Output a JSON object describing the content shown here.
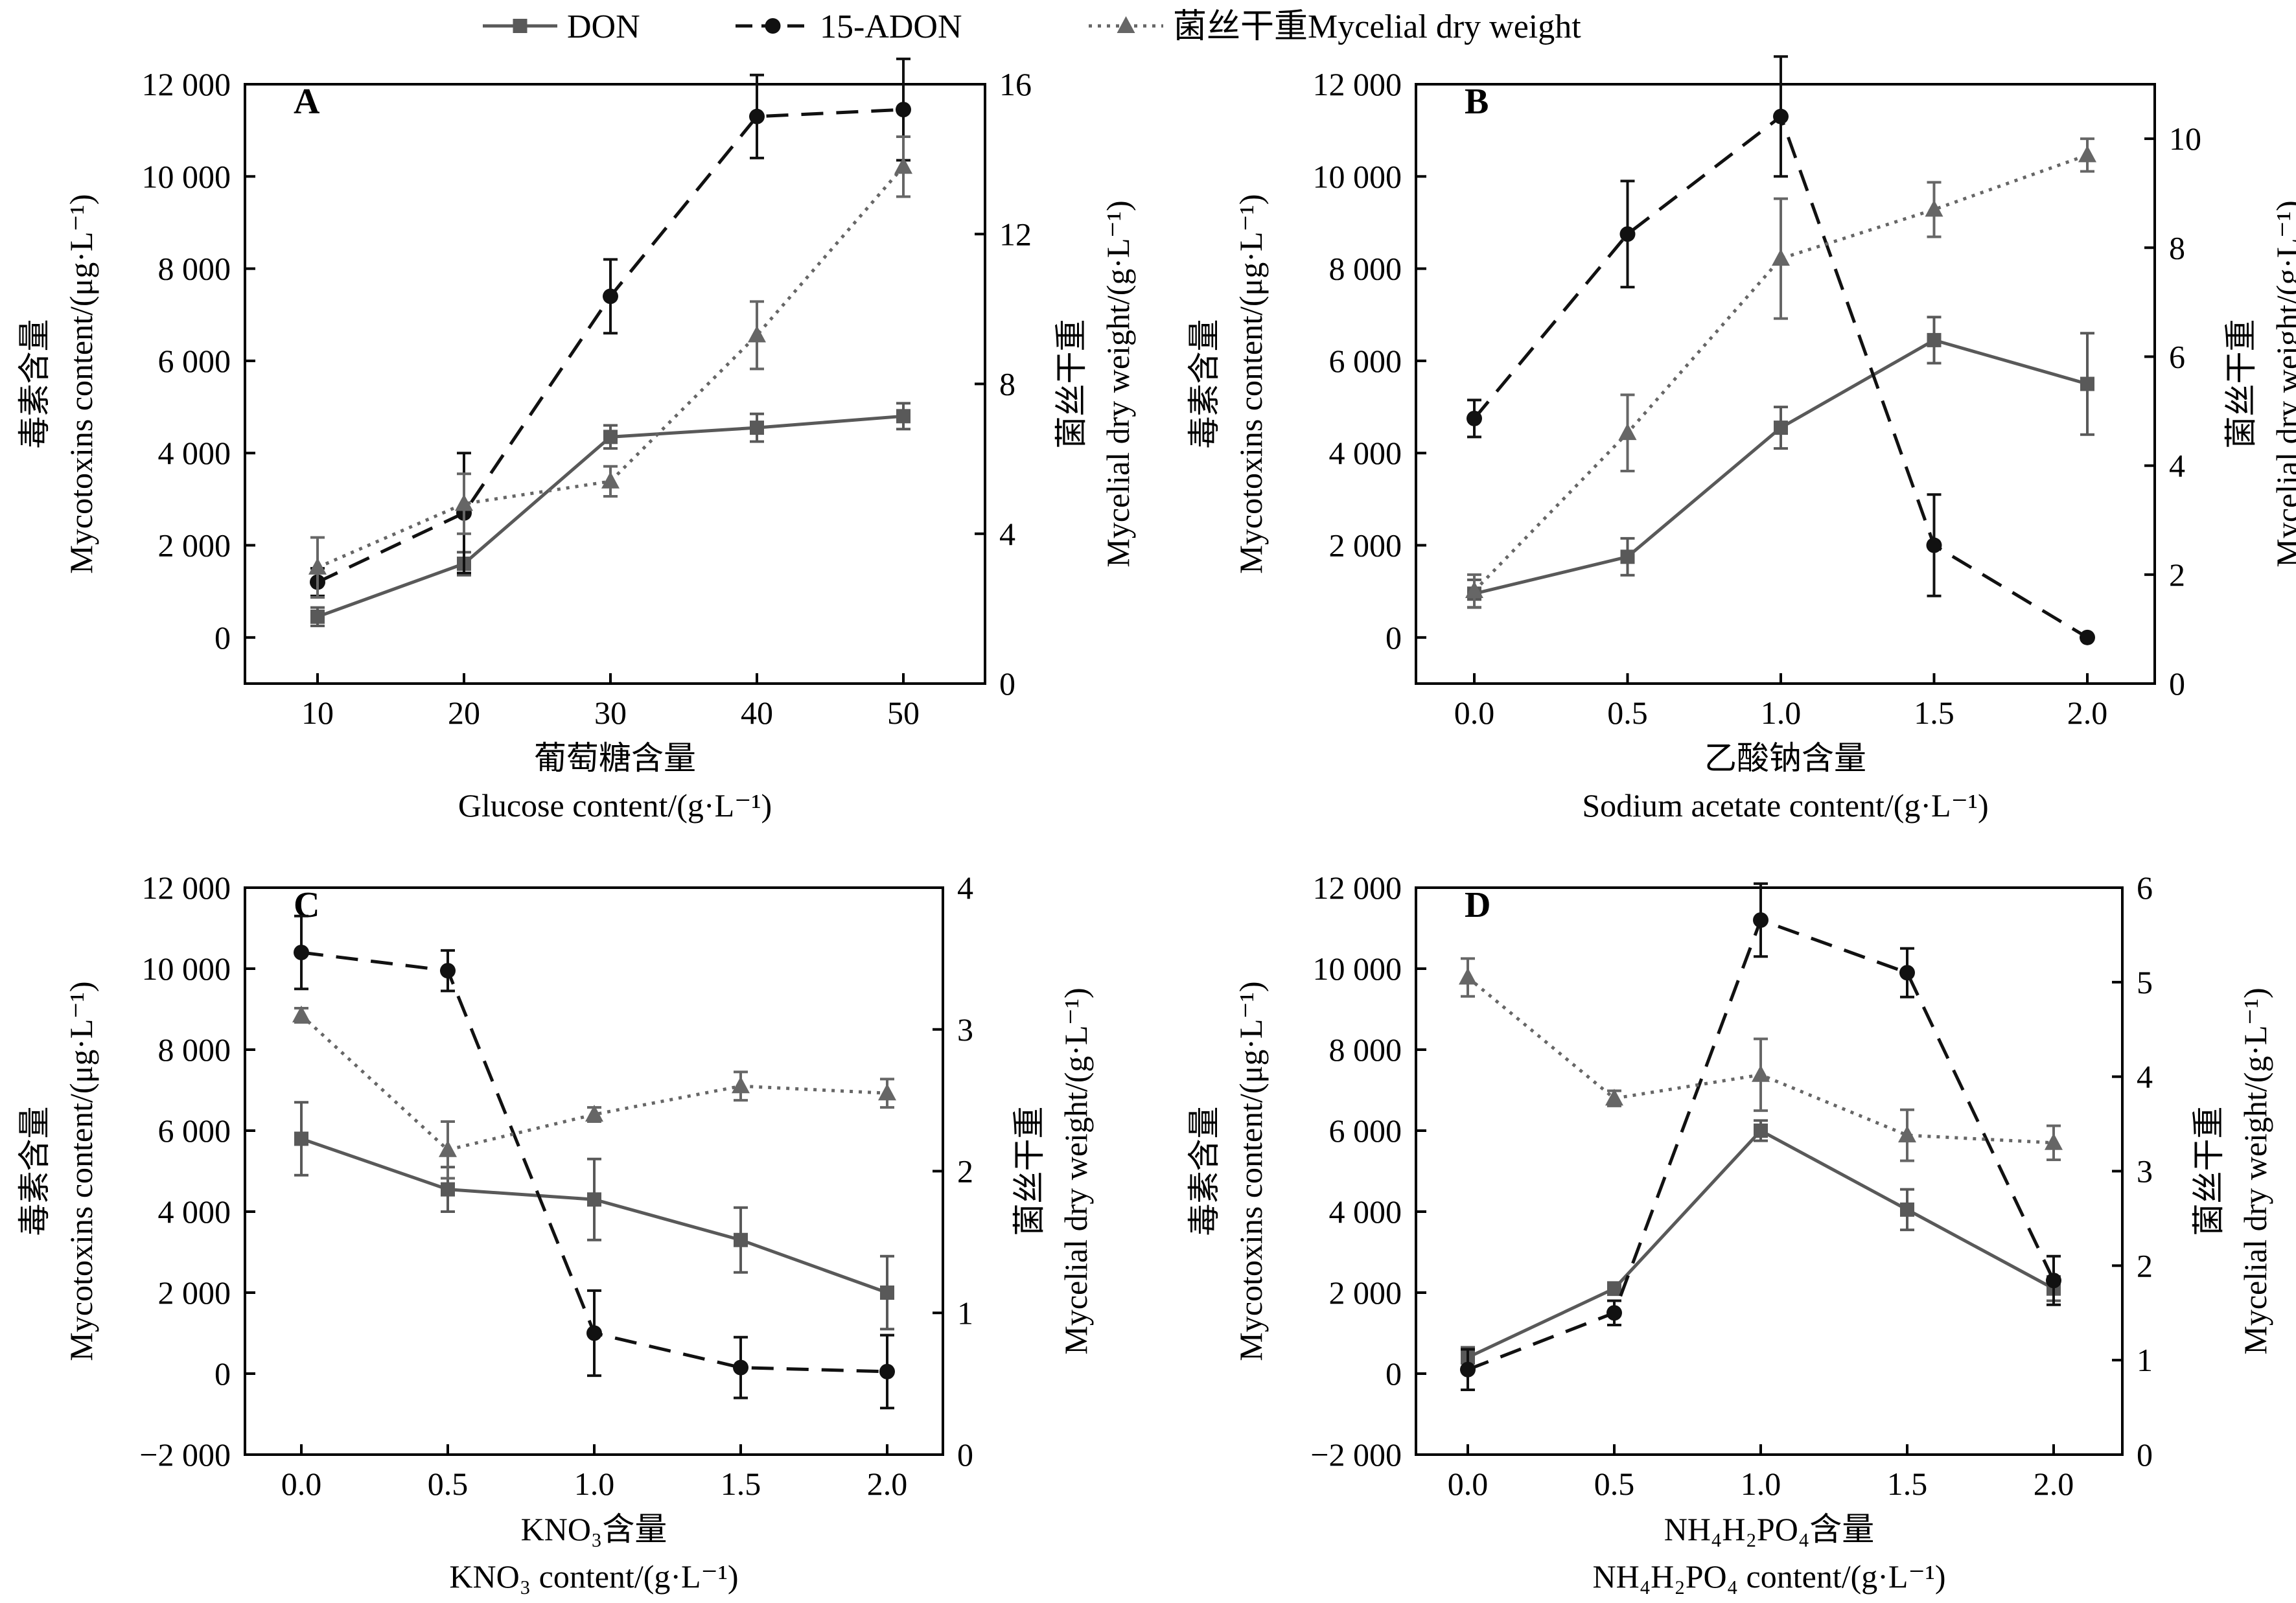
{
  "legend": {
    "items": [
      {
        "key": "don",
        "label": "DON",
        "style": "solid",
        "marker": "square",
        "color": "#595959"
      },
      {
        "key": "adon",
        "label": "15-ADON",
        "style": "dashed",
        "marker": "circle",
        "color": "#111111"
      },
      {
        "key": "dw",
        "label": "菌丝干重Mycelial dry weight",
        "style": "dotted",
        "marker": "triangle",
        "color": "#666666"
      }
    ],
    "placement": "top-center"
  },
  "chart_data": [
    {
      "type": "line",
      "panel_label": "A",
      "categories": [
        "10",
        "20",
        "30",
        "40",
        "50"
      ],
      "xlabel_cn": "葡萄糖含量",
      "xlabel_en": "Glucose content/(g·L⁻¹)",
      "ylabel_cn": "毒素含量",
      "ylabel_en": "Mycotoxins content/(μg·L⁻¹)",
      "y2label_cn": "菌丝干重",
      "y2label_en": "Mycelial dry weight/(g·L⁻¹)",
      "ylim": [
        -1000,
        12000
      ],
      "yticks": [
        0,
        2000,
        4000,
        6000,
        8000,
        10000,
        12000
      ],
      "ytick_labels": [
        "0",
        "2 000",
        "4 000",
        "6 000",
        "8 000",
        "10 000",
        "12 000"
      ],
      "y2lim": [
        0,
        16
      ],
      "y2ticks": [
        0,
        4,
        8,
        12,
        16
      ],
      "y2tick_labels": [
        "0",
        "4",
        "8",
        "12",
        "16"
      ],
      "series": [
        {
          "key": "don",
          "axis": "left",
          "values": [
            450,
            1600,
            4350,
            4550,
            4800
          ],
          "errors": [
            200,
            250,
            250,
            300,
            280
          ]
        },
        {
          "key": "adon",
          "axis": "left",
          "values": [
            1200,
            2700,
            7400,
            11300,
            11450
          ],
          "errors": [
            300,
            1300,
            800,
            900,
            1100
          ]
        },
        {
          "key": "dw",
          "axis": "right",
          "values": [
            3.1,
            4.8,
            5.4,
            9.3,
            13.8
          ],
          "errors": [
            0.8,
            0.8,
            0.4,
            0.9,
            0.8
          ]
        }
      ]
    },
    {
      "type": "line",
      "panel_label": "B",
      "categories": [
        "0.0",
        "0.5",
        "1.0",
        "1.5",
        "2.0"
      ],
      "xlabel_cn": "乙酸钠含量",
      "xlabel_en": "Sodium acetate content/(g·L⁻¹)",
      "ylabel_cn": "毒素含量",
      "ylabel_en": "Mycotoxins content/(μg·L⁻¹)",
      "y2label_cn": "菌丝干重",
      "y2label_en": "Mycelial dry weight/(g·L⁻¹)",
      "ylim": [
        -1000,
        12000
      ],
      "yticks": [
        0,
        2000,
        4000,
        6000,
        8000,
        10000,
        12000
      ],
      "ytick_labels": [
        "0",
        "2 000",
        "4 000",
        "6 000",
        "8 000",
        "10 000",
        "12 000"
      ],
      "y2lim": [
        0,
        11
      ],
      "y2ticks": [
        0,
        2,
        4,
        6,
        8,
        10
      ],
      "y2tick_labels": [
        "0",
        "2",
        "4",
        "6",
        "8",
        "10"
      ],
      "series": [
        {
          "key": "don",
          "axis": "left",
          "values": [
            950,
            1750,
            4550,
            6450,
            5500
          ],
          "errors": [
            300,
            400,
            450,
            500,
            1100
          ]
        },
        {
          "key": "adon",
          "axis": "left",
          "values": [
            4750,
            8750,
            11300,
            2000,
            0
          ],
          "errors": [
            400,
            1150,
            1300,
            1100,
            0
          ]
        },
        {
          "key": "dw",
          "axis": "right",
          "values": [
            1.7,
            4.6,
            7.8,
            8.7,
            9.7
          ],
          "errors": [
            0.3,
            0.7,
            1.1,
            0.5,
            0.3
          ]
        }
      ]
    },
    {
      "type": "line",
      "panel_label": "C",
      "categories": [
        "0.0",
        "0.5",
        "1.0",
        "1.5",
        "2.0"
      ],
      "xlabel_cn": "KNO₃含量",
      "xlabel_en": "KNO₃ content/(g·L⁻¹)",
      "ylabel_cn": "毒素含量",
      "ylabel_en": "Mycotoxins content/(μg·L⁻¹)",
      "y2label_cn": "菌丝干重",
      "y2label_en": "Mycelial dry weight/(g·L⁻¹)",
      "ylim": [
        -2000,
        12000
      ],
      "yticks": [
        -2000,
        0,
        2000,
        4000,
        6000,
        8000,
        10000,
        12000
      ],
      "ytick_labels": [
        "−2 000",
        "0",
        "2 000",
        "4 000",
        "6 000",
        "8 000",
        "10 000",
        "12 000"
      ],
      "y2lim": [
        0,
        4
      ],
      "y2ticks": [
        0,
        1,
        2,
        3,
        4
      ],
      "y2tick_labels": [
        "0",
        "1",
        "2",
        "3",
        "4"
      ],
      "series": [
        {
          "key": "don",
          "axis": "left",
          "values": [
            5800,
            4550,
            4300,
            3300,
            2000
          ],
          "errors": [
            900,
            550,
            1000,
            800,
            900
          ]
        },
        {
          "key": "adon",
          "axis": "left",
          "values": [
            10400,
            9950,
            1000,
            150,
            50
          ],
          "errors": [
            900,
            500,
            1050,
            750,
            900
          ]
        },
        {
          "key": "dw",
          "axis": "right",
          "values": [
            3.1,
            2.15,
            2.4,
            2.6,
            2.55
          ],
          "errors": [
            0.05,
            0.2,
            0.05,
            0.1,
            0.1
          ]
        }
      ]
    },
    {
      "type": "line",
      "panel_label": "D",
      "categories": [
        "0.0",
        "0.5",
        "1.0",
        "1.5",
        "2.0"
      ],
      "xlabel_cn": "NH₄H₂PO₄含量",
      "xlabel_en": "NH₄H₂PO₄ content/(g·L⁻¹)",
      "ylabel_cn": "毒素含量",
      "ylabel_en": "Mycotoxins content/(μg·L⁻¹)",
      "y2label_cn": "菌丝干重",
      "y2label_en": "Mycelial dry weight/(g·L⁻¹)",
      "ylim": [
        -2000,
        12000
      ],
      "yticks": [
        -2000,
        0,
        2000,
        4000,
        6000,
        8000,
        10000,
        12000
      ],
      "ytick_labels": [
        "−2 000",
        "0",
        "2 000",
        "4 000",
        "6 000",
        "8 000",
        "10 000",
        "12 000"
      ],
      "y2lim": [
        0,
        6
      ],
      "y2ticks": [
        0,
        1,
        2,
        3,
        4,
        5,
        6
      ],
      "y2tick_labels": [
        "0",
        "1",
        "2",
        "3",
        "4",
        "5",
        "6"
      ],
      "series": [
        {
          "key": "don",
          "axis": "left",
          "values": [
            400,
            2100,
            6000,
            4050,
            2100
          ],
          "errors": [
            250,
            150,
            250,
            500,
            300
          ]
        },
        {
          "key": "adon",
          "axis": "left",
          "values": [
            100,
            1500,
            11200,
            9900,
            2300
          ],
          "errors": [
            500,
            300,
            900,
            600,
            600
          ]
        },
        {
          "key": "dw",
          "axis": "right",
          "values": [
            5.05,
            3.77,
            4.02,
            3.38,
            3.3
          ],
          "errors": [
            0.2,
            0.08,
            0.38,
            0.27,
            0.18
          ]
        }
      ]
    }
  ]
}
